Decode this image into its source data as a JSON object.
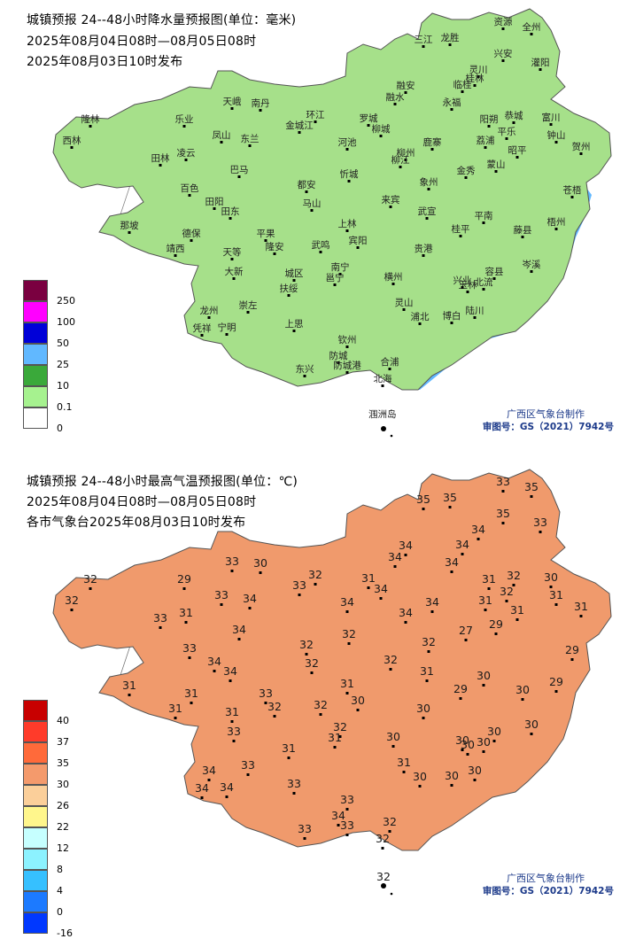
{
  "rain_panel": {
    "header": {
      "line1": "城镇预报 24--48小时降水量预报图(单位：毫米)",
      "line2": "2025年08月04日08时—08月05日08时",
      "line3": "2025年08月03日10时发布"
    },
    "legend": {
      "levels": [
        "250",
        "100",
        "50",
        "25",
        "10",
        "0.1",
        "0"
      ],
      "colors": [
        "#7a0040",
        "#ff00ff",
        "#0000d8",
        "#61b8ff",
        "#3aa93a",
        "#a6f28f",
        "#ffffff"
      ]
    },
    "region_colors": {
      "0.1-10": "#a6e08a",
      "10-25": "#3aa93a",
      "25-50": "#61b8ff",
      "50-100": "#0000d8"
    },
    "island_label": "涠洲岛",
    "credit_org": "广西区气象台制作",
    "credit_no": "审图号：GS（2021）7942号",
    "cities": [
      {
        "name": "资源"
      },
      {
        "name": "全州"
      },
      {
        "name": "三江"
      },
      {
        "name": "龙胜"
      },
      {
        "name": "兴安"
      },
      {
        "name": "灵川"
      },
      {
        "name": "桂林"
      },
      {
        "name": "临桂"
      },
      {
        "name": "灌阳"
      },
      {
        "name": "融安"
      },
      {
        "name": "融水"
      },
      {
        "name": "永福"
      },
      {
        "name": "天峨"
      },
      {
        "name": "南丹"
      },
      {
        "name": "环江"
      },
      {
        "name": "罗城"
      },
      {
        "name": "乐业"
      },
      {
        "name": "隆林"
      },
      {
        "name": "西林"
      },
      {
        "name": "田林"
      },
      {
        "name": "凌云"
      },
      {
        "name": "凤山"
      },
      {
        "name": "东兰"
      },
      {
        "name": "金城江"
      },
      {
        "name": "河池"
      },
      {
        "name": "柳城"
      },
      {
        "name": "鹿寨"
      },
      {
        "name": "柳州"
      },
      {
        "name": "柳江"
      },
      {
        "name": "阳朔"
      },
      {
        "name": "荔浦"
      },
      {
        "name": "平乐"
      },
      {
        "name": "恭城"
      },
      {
        "name": "钟山"
      },
      {
        "name": "富川"
      },
      {
        "name": "贺州"
      },
      {
        "name": "昭平"
      },
      {
        "name": "蒙山"
      },
      {
        "name": "金秀"
      },
      {
        "name": "象州"
      },
      {
        "name": "忻城"
      },
      {
        "name": "来宾"
      },
      {
        "name": "武宣"
      },
      {
        "name": "巴马"
      },
      {
        "name": "都安"
      },
      {
        "name": "马山"
      },
      {
        "name": "上林"
      },
      {
        "name": "宾阳"
      },
      {
        "name": "百色"
      },
      {
        "name": "田阳"
      },
      {
        "name": "田东"
      },
      {
        "name": "平果"
      },
      {
        "name": "那坡"
      },
      {
        "name": "德保"
      },
      {
        "name": "靖西"
      },
      {
        "name": "天等"
      },
      {
        "name": "隆安"
      },
      {
        "name": "武鸣"
      },
      {
        "name": "大新"
      },
      {
        "name": "扶绥"
      },
      {
        "name": "南宁"
      },
      {
        "name": "邕宁"
      },
      {
        "name": "横州"
      },
      {
        "name": "贵港"
      },
      {
        "name": "桂平"
      },
      {
        "name": "平南"
      },
      {
        "name": "藤县"
      },
      {
        "name": "梧州"
      },
      {
        "name": "苍梧"
      },
      {
        "name": "岑溪"
      },
      {
        "name": "容县"
      },
      {
        "name": "北流"
      },
      {
        "name": "玉林"
      },
      {
        "name": "兴业"
      },
      {
        "name": "陆川"
      },
      {
        "name": "博白"
      },
      {
        "name": "浦北"
      },
      {
        "name": "灵山"
      },
      {
        "name": "龙州"
      },
      {
        "name": "崇左"
      },
      {
        "name": "宁明"
      },
      {
        "name": "凭祥"
      },
      {
        "name": "上思"
      },
      {
        "name": "钦州"
      },
      {
        "name": "防城"
      },
      {
        "name": "东兴"
      },
      {
        "name": "防城港"
      },
      {
        "name": "合浦"
      },
      {
        "name": "北海"
      },
      {
        "name": "城区"
      }
    ]
  },
  "temp_panel": {
    "header": {
      "line1": "城镇预报 24--48小时最高气温预报图(单位：℃)",
      "line2": "2025年08月04日08时—08月05日08时",
      "line3": "各市气象台2025年08月03日10时发布"
    },
    "legend": {
      "levels": [
        "40",
        "37",
        "35",
        "30",
        "26",
        "22",
        "12",
        "8",
        "4",
        "0",
        "-16"
      ],
      "colors": [
        "#c80000",
        "#ff3b2a",
        "#ff6a3a",
        "#f49a6c",
        "#fbcf9a",
        "#fff68c",
        "#c6ffff",
        "#8cf2ff",
        "#36c0ff",
        "#1c7aff",
        "#0038ff"
      ]
    },
    "region_colors": {
      "30-35": "#f09a6c",
      "26-30": "#f9cf9c"
    },
    "credit_org": "广西区气象台制作",
    "credit_no": "审图号：GS（2021）7942号",
    "temperatures": [
      {
        "name": "资源",
        "value": "33"
      },
      {
        "name": "全州",
        "value": "35"
      },
      {
        "name": "三江",
        "value": "35"
      },
      {
        "name": "龙胜",
        "value": "35"
      },
      {
        "name": "兴安",
        "value": "35"
      },
      {
        "name": "灌阳",
        "value": "33"
      },
      {
        "name": "融安",
        "value": "34"
      },
      {
        "name": "融水",
        "value": "34"
      },
      {
        "name": "灵川",
        "value": "34"
      },
      {
        "name": "临桂",
        "value": "34"
      },
      {
        "name": "永福",
        "value": "34"
      },
      {
        "name": "天峨",
        "value": "33"
      },
      {
        "name": "南丹",
        "value": "30"
      },
      {
        "name": "环江",
        "value": "32"
      },
      {
        "name": "罗城",
        "value": "31"
      },
      {
        "name": "金城江",
        "value": "33"
      },
      {
        "name": "乐业",
        "value": "29"
      },
      {
        "name": "隆林",
        "value": "32"
      },
      {
        "name": "西林",
        "value": "32"
      },
      {
        "name": "田林",
        "value": "33"
      },
      {
        "name": "凌云",
        "value": "31"
      },
      {
        "name": "凤山",
        "value": "33"
      },
      {
        "name": "东兰",
        "value": "34"
      },
      {
        "name": "巴马",
        "value": "34"
      },
      {
        "name": "河池",
        "value": "34"
      },
      {
        "name": "柳城",
        "value": "34"
      },
      {
        "name": "柳州",
        "value": "34"
      },
      {
        "name": "鹿寨",
        "value": "34"
      },
      {
        "name": "阳朔",
        "value": "31"
      },
      {
        "name": "荔浦",
        "value": "31"
      },
      {
        "name": "平乐",
        "value": "32"
      },
      {
        "name": "恭城",
        "value": "32"
      },
      {
        "name": "钟山",
        "value": "31"
      },
      {
        "name": "富川",
        "value": "30"
      },
      {
        "name": "贺州",
        "value": "31"
      },
      {
        "name": "昭平",
        "value": "31"
      },
      {
        "name": "蒙山",
        "value": "29"
      },
      {
        "name": "金秀",
        "value": "27"
      },
      {
        "name": "象州",
        "value": "32"
      },
      {
        "name": "武宣",
        "value": "31"
      },
      {
        "name": "忻城",
        "value": "32"
      },
      {
        "name": "来宾",
        "value": "32"
      },
      {
        "name": "都安",
        "value": "32"
      },
      {
        "name": "马山",
        "value": "32"
      },
      {
        "name": "上林",
        "value": "31"
      },
      {
        "name": "宾阳",
        "value": "30"
      },
      {
        "name": "百色",
        "value": "33"
      },
      {
        "name": "田阳",
        "value": "34"
      },
      {
        "name": "田东",
        "value": "34"
      },
      {
        "name": "平果",
        "value": "33"
      },
      {
        "name": "那坡",
        "value": "31"
      },
      {
        "name": "德保",
        "value": "31"
      },
      {
        "name": "靖西",
        "value": "31"
      },
      {
        "name": "天等",
        "value": "31"
      },
      {
        "name": "隆安",
        "value": "32"
      },
      {
        "name": "武鸣",
        "value": "32"
      },
      {
        "name": "大新",
        "value": "33"
      },
      {
        "name": "扶绥",
        "value": "31"
      },
      {
        "name": "南宁",
        "value": "32"
      },
      {
        "name": "邕宁",
        "value": "31"
      },
      {
        "name": "横州",
        "value": "30"
      },
      {
        "name": "贵港",
        "value": "30"
      },
      {
        "name": "桂平",
        "value": "29"
      },
      {
        "name": "平南",
        "value": "30"
      },
      {
        "name": "藤县",
        "value": "30"
      },
      {
        "name": "梧州",
        "value": "29"
      },
      {
        "name": "苍梧",
        "value": "29"
      },
      {
        "name": "岑溪",
        "value": "30"
      },
      {
        "name": "容县",
        "value": "30"
      },
      {
        "name": "北流",
        "value": "30"
      },
      {
        "name": "玉林",
        "value": "30"
      },
      {
        "name": "兴业",
        "value": "30"
      },
      {
        "name": "陆川",
        "value": "30"
      },
      {
        "name": "博白",
        "value": "30"
      },
      {
        "name": "浦北",
        "value": "30"
      },
      {
        "name": "灵山",
        "value": "31"
      },
      {
        "name": "龙州",
        "value": "34"
      },
      {
        "name": "崇左",
        "value": "33"
      },
      {
        "name": "宁明",
        "value": "34"
      },
      {
        "name": "凭祥",
        "value": "34"
      },
      {
        "name": "上思",
        "value": "33"
      },
      {
        "name": "钦州",
        "value": "33"
      },
      {
        "name": "防城",
        "value": "34"
      },
      {
        "name": "东兴",
        "value": "33"
      },
      {
        "name": "防城港",
        "value": "33"
      },
      {
        "name": "合浦",
        "value": "32"
      },
      {
        "name": "北海",
        "value": "32"
      },
      {
        "name": "涠洲岛",
        "value": "32"
      }
    ]
  }
}
